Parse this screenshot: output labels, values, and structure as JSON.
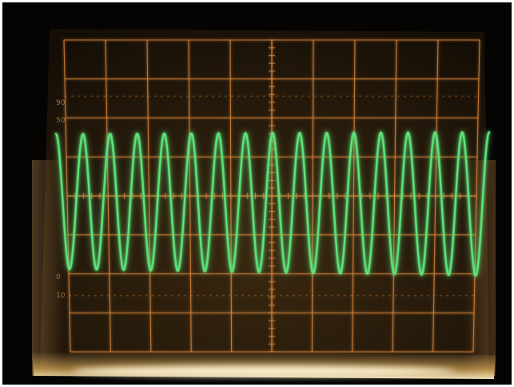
{
  "scene": "oscilloscope-screen-photo",
  "trace": {
    "color": "#5de27a",
    "waveform": "sine",
    "visible_cycles": 16
  },
  "graticule": {
    "color": "#d9843a",
    "divisions_x": 10,
    "divisions_y": 8,
    "percent_markers": [
      "90",
      "50",
      "0",
      "10"
    ]
  },
  "colors": {
    "screen_background": "#1c1208",
    "outer_frame": "#050403",
    "bottom_glow": "#ffd89a"
  }
}
